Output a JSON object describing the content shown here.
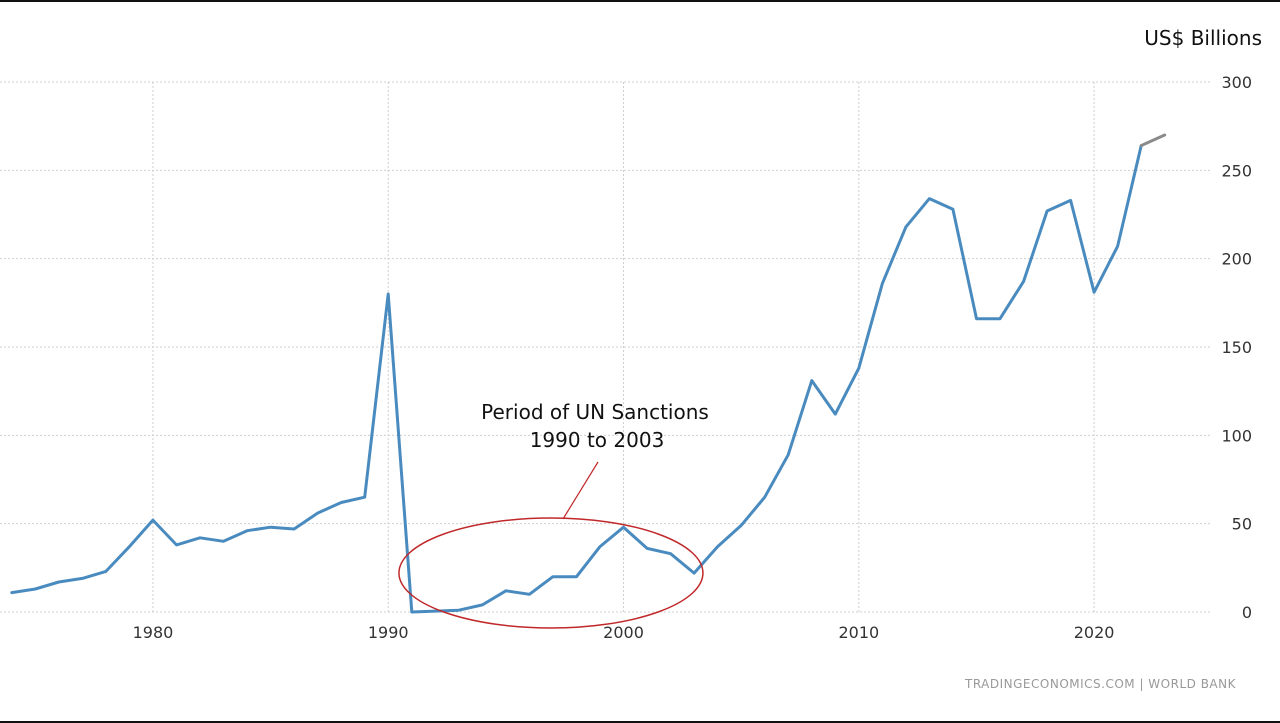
{
  "chart_data": {
    "type": "line",
    "title": "",
    "xlabel": "",
    "ylabel": "US$ Billions",
    "xlim": [
      1973.5,
      2024.5
    ],
    "ylim": [
      0,
      300
    ],
    "x_ticks": [
      1980,
      1990,
      2000,
      2010,
      2020
    ],
    "y_ticks": [
      0,
      50,
      100,
      150,
      200,
      250,
      300
    ],
    "grid": "dotted",
    "series": [
      {
        "name": "",
        "color": "#4a8bbf",
        "x": [
          1974,
          1975,
          1976,
          1977,
          1978,
          1979,
          1980,
          1981,
          1982,
          1983,
          1984,
          1985,
          1986,
          1987,
          1988,
          1989,
          1990,
          1991,
          1992,
          1993,
          1994,
          1995,
          1996,
          1997,
          1998,
          1999,
          2000,
          2001,
          2002,
          2003,
          2004,
          2005,
          2006,
          2007,
          2008,
          2009,
          2010,
          2011,
          2012,
          2013,
          2014,
          2015,
          2016,
          2017,
          2018,
          2019,
          2020,
          2021,
          2022
        ],
        "values": [
          11,
          13,
          17,
          19,
          23,
          37,
          52,
          38,
          42,
          40,
          46,
          48,
          47,
          56,
          62,
          65,
          180,
          0,
          0.5,
          1,
          4,
          12,
          10,
          20,
          20,
          37,
          48,
          36,
          33,
          22,
          37,
          49,
          65,
          89,
          131,
          112,
          138,
          186,
          218,
          234,
          228,
          166,
          166,
          187,
          227,
          233,
          181,
          207,
          264
        ]
      },
      {
        "name": "",
        "color": "#8a8a8a",
        "x": [
          2022,
          2023
        ],
        "values": [
          264,
          270
        ]
      }
    ],
    "annotation": {
      "line1": "Period of UN Sanctions",
      "line2": "1990 to 2003",
      "color": "#c0282a",
      "span": [
        1991,
        2003
      ]
    },
    "source": "TRADINGECONOMICS.COM  |  WORLD BANK"
  }
}
